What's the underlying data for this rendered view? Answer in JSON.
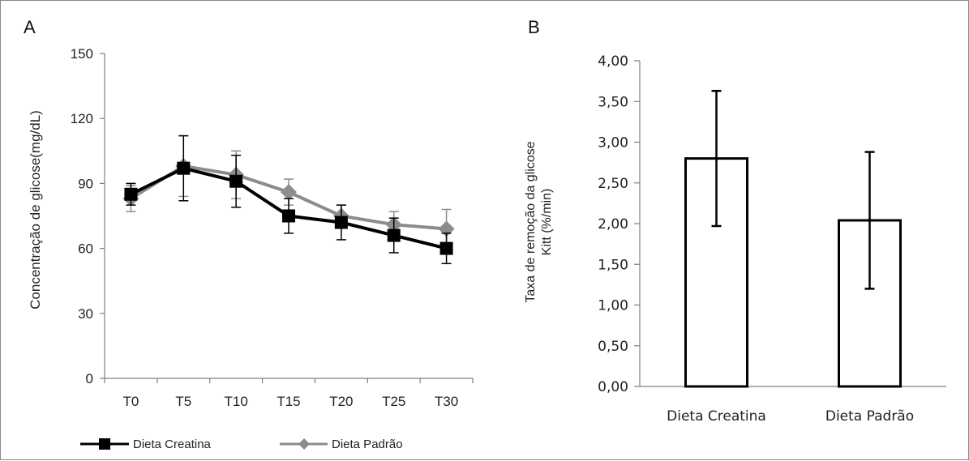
{
  "colors": {
    "creatina": "#000000",
    "padrao": "#8c8c8c",
    "axis": "#7f7f7f",
    "bar_fill": "#ffffff",
    "bar_stroke": "#000000",
    "frame": "#8a8a8a"
  },
  "chart_data": [
    {
      "panel_label": "A",
      "type": "line",
      "title": "",
      "xlabel": "",
      "ylabel": "Concentração de glicose(mg/dL)",
      "ylim": [
        0,
        150
      ],
      "yticks": [
        "0",
        "30",
        "60",
        "90",
        "120",
        "150"
      ],
      "ytick_values": [
        0,
        30,
        60,
        90,
        120,
        150
      ],
      "categories": [
        "T0",
        "T5",
        "T10",
        "T15",
        "T20",
        "T25",
        "T30"
      ],
      "grid": false,
      "legend_position": "bottom",
      "series": [
        {
          "name": "Dieta Creatina",
          "marker": "square",
          "values": [
            85,
            97,
            91,
            75,
            72,
            66,
            60
          ],
          "error": [
            5,
            15,
            12,
            8,
            8,
            8,
            7
          ]
        },
        {
          "name": "Dieta Padrão",
          "marker": "diamond",
          "values": [
            83,
            98,
            94,
            86,
            75,
            71,
            69
          ],
          "error": [
            6,
            14,
            11,
            6,
            5,
            6,
            9
          ]
        }
      ]
    },
    {
      "panel_label": "B",
      "type": "bar",
      "title": "",
      "xlabel": "",
      "ylabel": "Taxa de remoção da glicose Kitt (%/min)",
      "ylabel_lines": [
        "Taxa de remoção da glicose",
        "Kitt (%/min)"
      ],
      "ylim": [
        0,
        4
      ],
      "yticks": [
        "0,00",
        "0,50",
        "1,00",
        "1,50",
        "2,00",
        "2,50",
        "3,00",
        "3,50",
        "4,00"
      ],
      "ytick_values": [
        0,
        0.5,
        1,
        1.5,
        2,
        2.5,
        3,
        3.5,
        4
      ],
      "categories": [
        "Dieta Creatina",
        "Dieta Padrão"
      ],
      "values": [
        2.8,
        2.04
      ],
      "error": [
        0.83,
        0.84
      ],
      "grid": false
    }
  ]
}
